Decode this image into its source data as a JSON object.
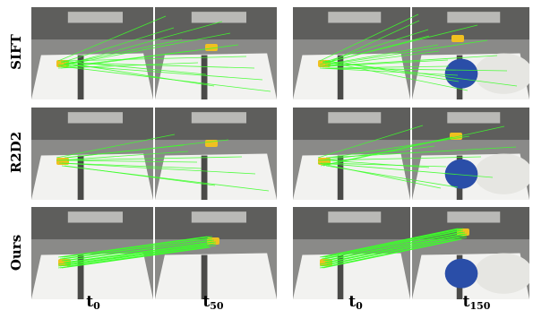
{
  "row_labels": [
    "SIFT",
    "R2D2",
    "Ours"
  ],
  "column_labels": [
    {
      "base": "t",
      "sub": "0"
    },
    {
      "base": "t",
      "sub": "50"
    },
    {
      "base": "t",
      "sub": "0"
    },
    {
      "base": "t",
      "sub": "150"
    }
  ],
  "colors": {
    "match_line": "#3dff2a",
    "background": "#ffffff",
    "table": "#f2f2f0",
    "object": "#f0c020"
  }
}
